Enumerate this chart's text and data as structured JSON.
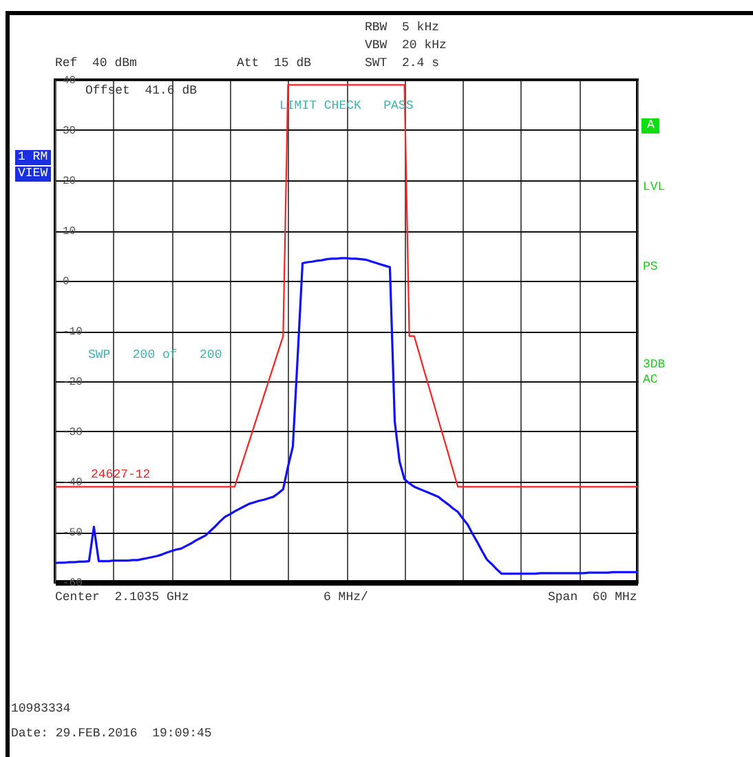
{
  "chart_data": {
    "type": "line",
    "ylim": [
      -60,
      40
    ],
    "categories": [
      null,
      null,
      null,
      null,
      null,
      null,
      null,
      null,
      null,
      null,
      null,
      null,
      null,
      null,
      null,
      null,
      null,
      null,
      null,
      null,
      null,
      null,
      null,
      null,
      null,
      null,
      null,
      null,
      null,
      null,
      null,
      null,
      null,
      null,
      null,
      null,
      null,
      null,
      null,
      null,
      null,
      null,
      null,
      null,
      null,
      null,
      null,
      null,
      null,
      null,
      null,
      null,
      null,
      null,
      null,
      null,
      null,
      null,
      null,
      null,
      null,
      null,
      null,
      null,
      null,
      null,
      null,
      null,
      null,
      null,
      null,
      null,
      null,
      null,
      null,
      null,
      null,
      null,
      null,
      null,
      null,
      null,
      null,
      null,
      null,
      null,
      null,
      null,
      null,
      null,
      null,
      null,
      null,
      null,
      null,
      null,
      null,
      null,
      null,
      null,
      null,
      null,
      null,
      null,
      null,
      null,
      null,
      null,
      null,
      null,
      null,
      null,
      null,
      null,
      null,
      null,
      null,
      null,
      null,
      null,
      null
    ],
    "yticks": [
      -60,
      -50,
      -40,
      -30,
      -20,
      -10,
      0,
      10,
      20,
      30,
      40
    ],
    "tick_labels": "y",
    "grid": true,
    "legend": false,
    "line_style": "solid",
    "marker": "none",
    "series": [
      {
        "color": "#1010ff",
        "values": [
          -56.2,
          -56.1,
          -56.1,
          -56.0,
          -56.0,
          -55.9,
          -55.9,
          -55.8,
          -49,
          -55.8,
          -55.8,
          -55.8,
          -55.7,
          -55.7,
          -55.7,
          -55.7,
          -55.6,
          -55.6,
          -55.4,
          -55.2,
          -55.0,
          -54.8,
          -54.5,
          -54.1,
          -53.8,
          -53.5,
          -53.3,
          -52.8,
          -52.3,
          -51.7,
          -51.2,
          -50.7,
          -49.8,
          -48.9,
          -47.9,
          -47.0,
          -46.5,
          -45.9,
          -45.4,
          -44.9,
          -44.4,
          -44.1,
          -43.8,
          -43.6,
          -43.3,
          -43.0,
          -42.3,
          -41.5,
          -37,
          -33,
          -15,
          3.5,
          3.7,
          3.8,
          4.0,
          4.1,
          4.3,
          4.4,
          4.4,
          4.5,
          4.5,
          4.4,
          4.4,
          4.3,
          4.2,
          3.9,
          3.6,
          3.3,
          3.0,
          2.7,
          -28,
          -36,
          -39.5,
          -40.3,
          -41,
          -41.4,
          -41.8,
          -42.2,
          -42.6,
          -43,
          -43.8,
          -44.5,
          -45.3,
          -46,
          -47.3,
          -48.5,
          -50.3,
          -52,
          -53.8,
          -55.5,
          -56.4,
          -57.4,
          -58.3,
          -58.3,
          -58.3,
          -58.3,
          -58.3,
          -58.3,
          -58.3,
          -58.3,
          -58.2,
          -58.2,
          -58.2,
          -58.2,
          -58.2,
          -58.2,
          -58.2,
          -58.2,
          -58.2,
          -58.2,
          -58.1,
          -58.1,
          -58.1,
          -58.1,
          -58.1,
          -58.0,
          -58.0,
          -58.0,
          -58.0,
          -58.0,
          -58.0
        ]
      },
      {
        "name": "24627-12",
        "color": "#ff2020",
        "values": [
          -41,
          -41,
          -41,
          -41,
          -41,
          -41,
          -41,
          -41,
          -41,
          -41,
          -41,
          -41,
          -41,
          -41,
          -41,
          -41,
          -41,
          -41,
          -41,
          -41,
          -41,
          -41,
          -41,
          -41,
          -41,
          -41,
          -41,
          -41,
          -41,
          -41,
          -41,
          -41,
          -41,
          -41,
          -41,
          -41,
          -41,
          -41,
          -38,
          -35,
          -32,
          -29,
          -26,
          -23,
          -20,
          -17,
          -14,
          -11,
          39,
          39,
          39,
          39,
          39,
          39,
          39,
          39,
          39,
          39,
          39,
          39,
          39,
          39,
          39,
          39,
          39,
          39,
          39,
          39,
          39,
          39,
          39,
          39,
          39,
          -11,
          -11,
          -14.3,
          -17.7,
          -21,
          -24.3,
          -27.7,
          -31,
          -34.3,
          -37.7,
          -41,
          -41,
          -41,
          -41,
          -41,
          -41,
          -41,
          -41,
          -41,
          -41,
          -41,
          -41,
          -41,
          -41,
          -41,
          -41,
          -41,
          -41,
          -41,
          -41,
          -41,
          -41,
          -41,
          -41,
          -41,
          -41,
          -41,
          -41,
          -41,
          -41,
          -41,
          -41,
          -41,
          -41,
          -41,
          -41,
          -41,
          -41
        ]
      }
    ],
    "annotations": [
      "RBW  5 kHz",
      "VBW  20 kHz",
      "Ref  40 dBm",
      "Att  15 dB",
      "SWT  2.4 s",
      "Offset  41.6 dB",
      "LIMIT CHECK   PASS",
      "1 RM",
      "VIEW",
      "A",
      "LVL",
      "PS",
      "3DB",
      "AC",
      "SWP   200 of   200",
      "Center  2.1035 GHz",
      "6 MHz/",
      "Span  60 MHz",
      "10983334",
      "Date: 29.FEB.2016  19:09:45"
    ]
  }
}
